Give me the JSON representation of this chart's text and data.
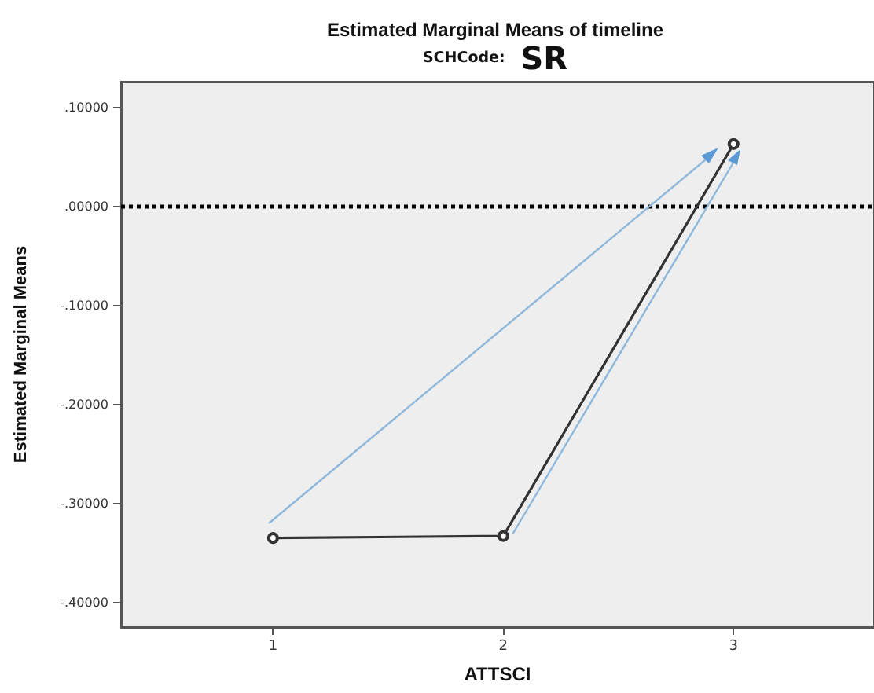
{
  "chart_data": {
    "type": "line",
    "title": "Estimated Marginal Means of timeline",
    "subtitle": "SCHCode: SR",
    "xlabel": "ATTSCI",
    "ylabel": "Estimated Marginal Means",
    "x": [
      1,
      2,
      3
    ],
    "series": [
      {
        "color": "#333333",
        "values": [
          -0.335,
          -0.333,
          0.063
        ]
      }
    ],
    "xlim": [
      0.34,
      3.61
    ],
    "xticks": [
      1,
      2,
      3
    ],
    "ylim": [
      -0.425,
      0.126
    ],
    "yticks": [
      {
        "value": -0.4,
        "label": "-.40000"
      },
      {
        "value": -0.3,
        "label": "-.30000"
      },
      {
        "value": -0.2,
        "label": "-.20000"
      },
      {
        "value": -0.1,
        "label": "-.10000"
      },
      {
        "value": 0,
        "label": ".00000"
      },
      {
        "value": 0.1,
        "label": ".10000"
      }
    ],
    "ref_lines": [
      {
        "axis": "y",
        "value": 0,
        "color": "#000000",
        "line_style": "dotted"
      }
    ],
    "marker": "circle",
    "grid": false
  }
}
